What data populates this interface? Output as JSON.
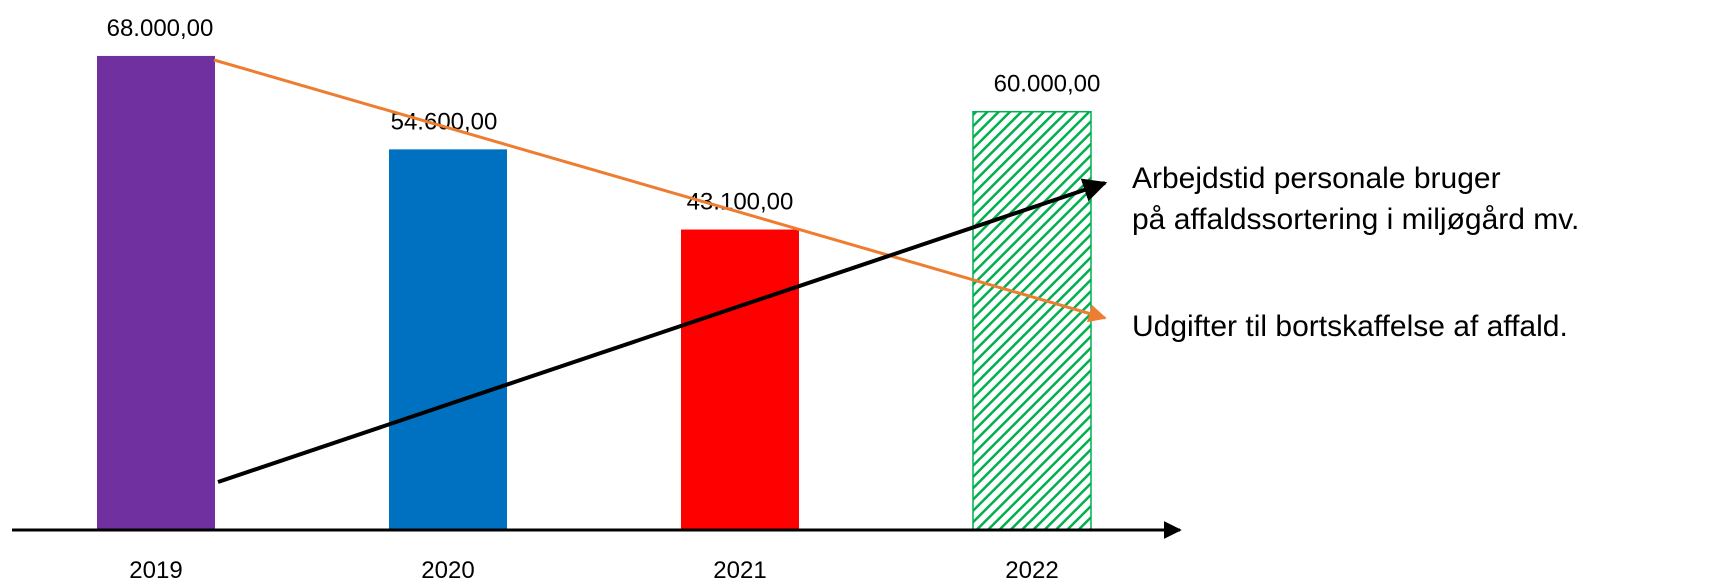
{
  "chart_data": {
    "type": "bar",
    "categories": [
      "2019",
      "2020",
      "2021",
      "2022"
    ],
    "values": [
      68000,
      54600,
      43100,
      60000
    ],
    "value_labels": [
      "68.000,00",
      "54.600,00",
      "43.100,00",
      "60.000,00"
    ],
    "bar_colors": [
      "#7030a0",
      "#0070c0",
      "#ff0000",
      "#00b050"
    ],
    "bar_patterns": [
      "solid",
      "solid",
      "solid",
      "diagonal-hatch"
    ],
    "title": "",
    "xlabel": "",
    "ylabel": "",
    "ylim": [
      0,
      70000
    ],
    "grid": false,
    "trend_arrows": [
      {
        "text": "Udgifter til bortskaffelse af affald.",
        "color": "#ed7d31",
        "direction": "down"
      },
      {
        "text_lines": [
          "Arbejdstid personale bruger",
          "på affaldssortering  i miljøgård mv."
        ],
        "color": "#000000",
        "direction": "up"
      }
    ]
  }
}
